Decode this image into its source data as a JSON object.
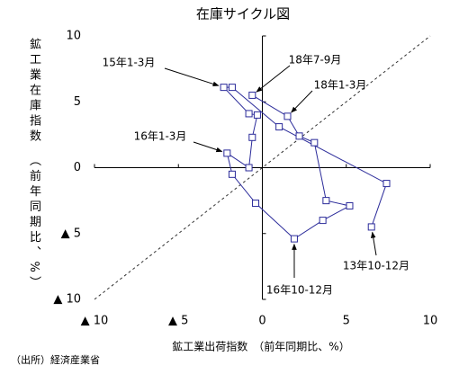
{
  "chart_data": {
    "type": "scatter-line",
    "title": "在庫サイクル図",
    "x_label": "鉱工業出荷指数　（前年同期比、%）",
    "y_label": "鉱工業在庫指数　（前年同期比、%）",
    "source": "（出所）経済産業省",
    "xlim": [
      -10,
      10
    ],
    "ylim": [
      -10,
      10
    ],
    "xticks": [
      {
        "value": -10,
        "label": "▲ 10"
      },
      {
        "value": -5,
        "label": "▲ 5"
      },
      0,
      5,
      10
    ],
    "yticks": [
      {
        "value": -10,
        "label": "▲ 10"
      },
      {
        "value": -5,
        "label": "▲ 5"
      },
      0,
      5,
      10
    ],
    "grid": false,
    "series": [
      {
        "color": "#2b2b9a",
        "x": [
          6.5,
          7.4,
          1.0,
          -1.8,
          -2.3,
          -0.8,
          -0.3,
          -0.6,
          -0.8,
          -2.1,
          -1.8,
          -0.4,
          1.9,
          3.6,
          5.2,
          3.8,
          3.1,
          2.2,
          1.5,
          -0.6
        ],
        "y": [
          -4.5,
          -1.2,
          3.1,
          6.1,
          6.1,
          4.1,
          4.0,
          2.3,
          0.0,
          1.1,
          -0.5,
          -2.7,
          -5.4,
          -4.0,
          -2.9,
          -2.5,
          1.9,
          2.4,
          3.9,
          5.5
        ]
      }
    ],
    "annotations": [
      "13年10-12月",
      "15年1-3月",
      "16年1-3月",
      "16年10-12月",
      "18年1-3月",
      "18年7-9月"
    ]
  }
}
